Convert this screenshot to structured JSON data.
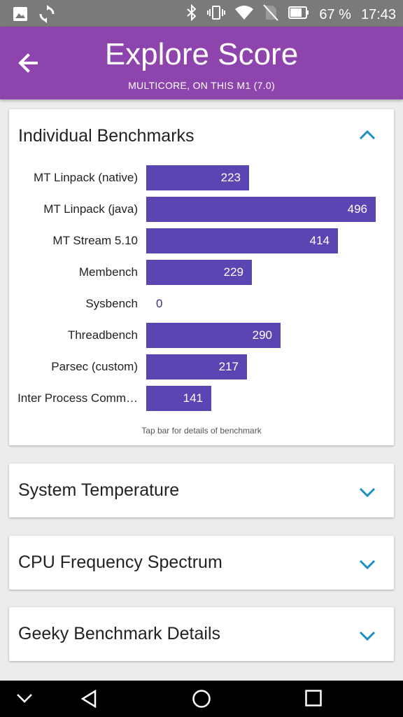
{
  "status_bar": {
    "battery_percent": "67 %",
    "time": "17:43",
    "icons": [
      "image-icon",
      "sync-icon",
      "bluetooth-icon",
      "vibrate-icon",
      "wifi-icon",
      "no-sim-icon",
      "battery-icon"
    ]
  },
  "header": {
    "title": "Explore Score",
    "subtitle": "MULTICORE, ON THIS M1 (7.0)",
    "color": "#8e44ad"
  },
  "benchmarks_card": {
    "title": "Individual Benchmarks",
    "hint": "Tap bar for details of benchmark"
  },
  "chart_data": {
    "type": "bar",
    "orientation": "horizontal",
    "categories": [
      "MT Linpack (native)",
      "MT Linpack (java)",
      "MT Stream 5.10",
      "Membench",
      "Sysbench",
      "Threadbench",
      "Parsec (custom)",
      "Inter Process Comm…"
    ],
    "values": [
      223,
      496,
      414,
      229,
      0,
      290,
      217,
      141
    ],
    "value_labels": [
      "223",
      "496",
      "414",
      "229",
      "0",
      "290",
      "217",
      "141"
    ],
    "xlim": [
      0,
      496
    ],
    "bar_color": "#5b45b3"
  },
  "collapsed_cards": [
    {
      "title": "System Temperature"
    },
    {
      "title": "CPU Frequency Spectrum"
    },
    {
      "title": "Geeky Benchmark Details"
    }
  ],
  "accent_color": "#1a8fc4"
}
